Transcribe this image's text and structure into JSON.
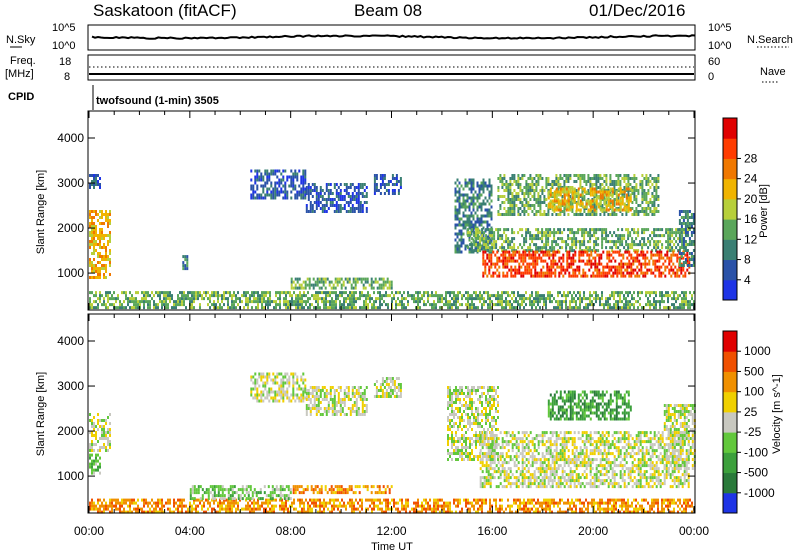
{
  "header": {
    "station": "Saskatoon (fitACF)",
    "beam": "Beam 08",
    "date": "01/Dec/2016"
  },
  "top_panel": {
    "left_label": "N.Sky",
    "right_label": "N.Search",
    "left_ticks": [
      "10^5",
      "10^0"
    ],
    "right_ticks": [
      "10^5",
      "10^0"
    ]
  },
  "freq_panel": {
    "left_label_1": "Freq.",
    "left_label_2": "[MHz]",
    "right_label": "Nave",
    "left_ticks": [
      "18",
      "8"
    ],
    "right_ticks": [
      "60",
      "0"
    ]
  },
  "cpid": {
    "label": "CPID",
    "value": "twofsound (1-min) 3505"
  },
  "chart_data": [
    {
      "type": "heatmap",
      "name": "power",
      "ylabel": "Slant Range [km]",
      "xlabel": "",
      "ylim": [
        180,
        4600
      ],
      "yticks": [
        "1000",
        "2000",
        "3000",
        "4000"
      ],
      "xlim_hours": [
        0,
        24
      ],
      "colorbar": {
        "label": "Power [dB]",
        "ticks": [
          "4",
          "8",
          "12",
          "16",
          "20",
          "24",
          "28"
        ],
        "colors": [
          "#1e34e6",
          "#2a52a8",
          "#3a7f73",
          "#5aa65a",
          "#b7cf3a",
          "#f0b400",
          "#f07800",
          "#ff3c00",
          "#e00000"
        ]
      },
      "regions": [
        {
          "t0": 0.0,
          "t1": 0.8,
          "r0": 900,
          "r1": 2400,
          "level": 5
        },
        {
          "t0": 0.0,
          "t1": 0.4,
          "r0": 2900,
          "r1": 3200,
          "level": 1
        },
        {
          "t0": 3.7,
          "t1": 3.9,
          "r0": 1100,
          "r1": 1400,
          "level": 2
        },
        {
          "t0": 6.4,
          "t1": 8.6,
          "r0": 2700,
          "r1": 3300,
          "level": 1
        },
        {
          "t0": 8.6,
          "t1": 11.0,
          "r0": 2400,
          "r1": 3000,
          "level": 1
        },
        {
          "t0": 11.3,
          "t1": 12.4,
          "r0": 2800,
          "r1": 3200,
          "level": 1
        },
        {
          "t0": 0.0,
          "t1": 24.0,
          "r0": 250,
          "r1": 600,
          "level": 3
        },
        {
          "t0": 8.0,
          "t1": 12.0,
          "r0": 650,
          "r1": 900,
          "level": 3
        },
        {
          "t0": 14.5,
          "t1": 16.0,
          "r0": 1500,
          "r1": 3100,
          "level": 2
        },
        {
          "t0": 15.0,
          "t1": 23.8,
          "r0": 1500,
          "r1": 2000,
          "level": 3
        },
        {
          "t0": 15.6,
          "t1": 23.8,
          "r0": 950,
          "r1": 1500,
          "level": 7
        },
        {
          "t0": 16.2,
          "t1": 22.6,
          "r0": 2300,
          "r1": 3200,
          "level": 3
        },
        {
          "t0": 18.2,
          "t1": 21.5,
          "r0": 2400,
          "r1": 2900,
          "level": 5
        },
        {
          "t0": 23.4,
          "t1": 24.0,
          "r0": 1200,
          "r1": 2400,
          "level": 2
        }
      ]
    },
    {
      "type": "heatmap",
      "name": "velocity",
      "ylabel": "Slant Range [km]",
      "xlabel": "Time UT",
      "ylim": [
        180,
        4600
      ],
      "yticks": [
        "1000",
        "2000",
        "3000",
        "4000"
      ],
      "xticks": [
        "00:00",
        "04:00",
        "08:00",
        "12:00",
        "16:00",
        "20:00",
        "00:00"
      ],
      "xlim_hours": [
        0,
        24
      ],
      "colorbar": {
        "label": "Velocity [m s^-1]",
        "ticks": [
          "1000",
          "500",
          "100",
          "25",
          "-25",
          "-100",
          "-500",
          "-1000"
        ],
        "colors": [
          "#1e34e6",
          "#2a7a3a",
          "#3ca03c",
          "#62c83c",
          "#c8c8c0",
          "#f0d000",
          "#f09000",
          "#f05000",
          "#e00000"
        ]
      },
      "regions": [
        {
          "t0": 0.0,
          "t1": 0.8,
          "r0": 1600,
          "r1": 2400,
          "level": 4
        },
        {
          "t0": 0.0,
          "t1": 0.4,
          "r0": 1100,
          "r1": 1500,
          "level": 3
        },
        {
          "t0": 6.4,
          "t1": 8.6,
          "r0": 2700,
          "r1": 3300,
          "level": 4
        },
        {
          "t0": 8.6,
          "t1": 11.0,
          "r0": 2400,
          "r1": 3000,
          "level": 4
        },
        {
          "t0": 11.3,
          "t1": 12.4,
          "r0": 2800,
          "r1": 3200,
          "level": 4
        },
        {
          "t0": 0.0,
          "t1": 24.0,
          "r0": 200,
          "r1": 500,
          "level": 6
        },
        {
          "t0": 4.0,
          "t1": 8.0,
          "r0": 500,
          "r1": 800,
          "level": 3
        },
        {
          "t0": 8.0,
          "t1": 12.0,
          "r0": 650,
          "r1": 800,
          "level": 6
        },
        {
          "t0": 14.2,
          "t1": 16.2,
          "r0": 1400,
          "r1": 3000,
          "level": 4
        },
        {
          "t0": 15.5,
          "t1": 23.8,
          "r0": 800,
          "r1": 2000,
          "level": 4
        },
        {
          "t0": 18.2,
          "t1": 21.5,
          "r0": 2300,
          "r1": 2900,
          "level": 2
        },
        {
          "t0": 22.8,
          "t1": 24.0,
          "r0": 1200,
          "r1": 2600,
          "level": 4
        }
      ]
    }
  ]
}
